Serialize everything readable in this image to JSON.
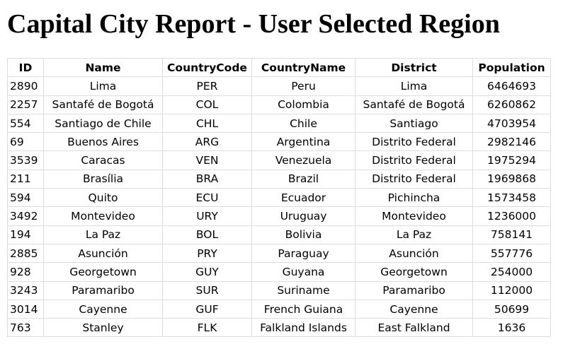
{
  "page": {
    "title": "Capital City Report - User Selected Region"
  },
  "table": {
    "headers": [
      "ID",
      "Name",
      "CountryCode",
      "CountryName",
      "District",
      "Population"
    ],
    "rows": [
      [
        "2890",
        "Lima",
        "PER",
        "Peru",
        "Lima",
        "6464693"
      ],
      [
        "2257",
        "Santafé de Bogotá",
        "COL",
        "Colombia",
        "Santafé de Bogotá",
        "6260862"
      ],
      [
        "554",
        "Santiago de Chile",
        "CHL",
        "Chile",
        "Santiago",
        "4703954"
      ],
      [
        "69",
        "Buenos Aires",
        "ARG",
        "Argentina",
        "Distrito Federal",
        "2982146"
      ],
      [
        "3539",
        "Caracas",
        "VEN",
        "Venezuela",
        "Distrito Federal",
        "1975294"
      ],
      [
        "211",
        "Brasília",
        "BRA",
        "Brazil",
        "Distrito Federal",
        "1969868"
      ],
      [
        "594",
        "Quito",
        "ECU",
        "Ecuador",
        "Pichincha",
        "1573458"
      ],
      [
        "3492",
        "Montevideo",
        "URY",
        "Uruguay",
        "Montevideo",
        "1236000"
      ],
      [
        "194",
        "La Paz",
        "BOL",
        "Bolivia",
        "La Paz",
        "758141"
      ],
      [
        "2885",
        "Asunción",
        "PRY",
        "Paraguay",
        "Asunción",
        "557776"
      ],
      [
        "928",
        "Georgetown",
        "GUY",
        "Guyana",
        "Georgetown",
        "254000"
      ],
      [
        "3243",
        "Paramaribo",
        "SUR",
        "Suriname",
        "Paramaribo",
        "112000"
      ],
      [
        "3014",
        "Cayenne",
        "GUF",
        "French Guiana",
        "Cayenne",
        "50699"
      ],
      [
        "763",
        "Stanley",
        "FLK",
        "Falkland Islands",
        "East Falkland",
        "1636"
      ]
    ]
  }
}
